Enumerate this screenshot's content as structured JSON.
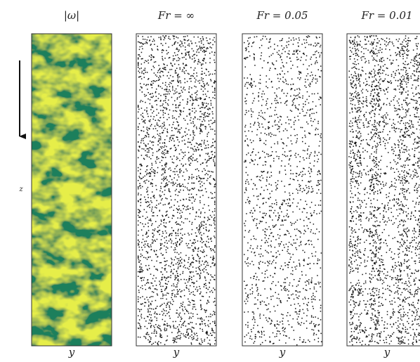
{
  "figure": {
    "z_label": "z",
    "panels": [
      {
        "title": "|ω|",
        "x_label": "y"
      },
      {
        "title": "Fr = ∞",
        "x_label": "y"
      },
      {
        "title": "Fr = 0.05",
        "x_label": "y"
      },
      {
        "title": "Fr = 0.01",
        "x_label": "y"
      }
    ]
  }
}
